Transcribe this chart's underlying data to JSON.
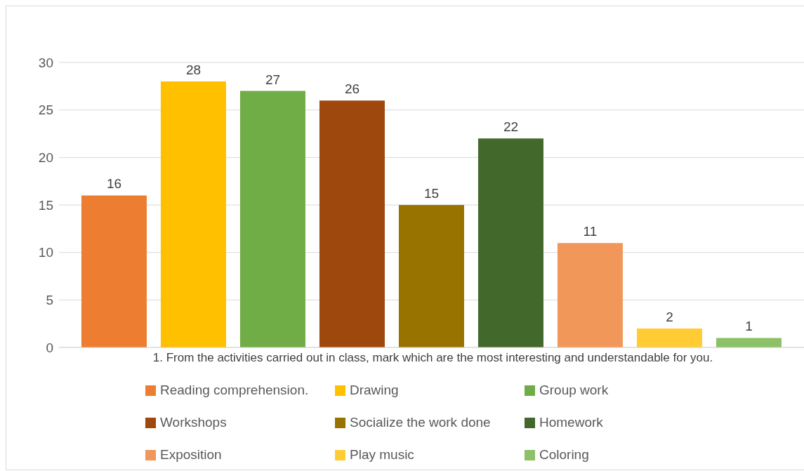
{
  "chart_data": {
    "type": "bar",
    "categories": [
      "1. From the activities carried out in class, mark which are the most interesting and understandable for you."
    ],
    "series": [
      {
        "name": "Reading comprehension.",
        "color": "#ed7d31",
        "values": [
          16
        ]
      },
      {
        "name": "Drawing",
        "color": "#ffc000",
        "values": [
          28
        ]
      },
      {
        "name": "Group work",
        "color": "#70ad47",
        "values": [
          27
        ]
      },
      {
        "name": "Workshops",
        "color": "#9e480e",
        "values": [
          26
        ]
      },
      {
        "name": "Socialize the work done",
        "color": "#997300",
        "values": [
          15
        ]
      },
      {
        "name": "Homework",
        "color": "#43682b",
        "values": [
          22
        ]
      },
      {
        "name": "Exposition",
        "color": "#f1975a",
        "values": [
          11
        ]
      },
      {
        "name": "Play music",
        "color": "#ffcd33",
        "values": [
          2
        ]
      },
      {
        "name": "Coloring",
        "color": "#8cc168",
        "values": [
          1
        ]
      }
    ],
    "ylim": [
      0,
      30
    ],
    "yticks": [
      0,
      5,
      10,
      15,
      20,
      25,
      30
    ],
    "grid": "y",
    "legend": "bottom",
    "data_labels": true
  }
}
